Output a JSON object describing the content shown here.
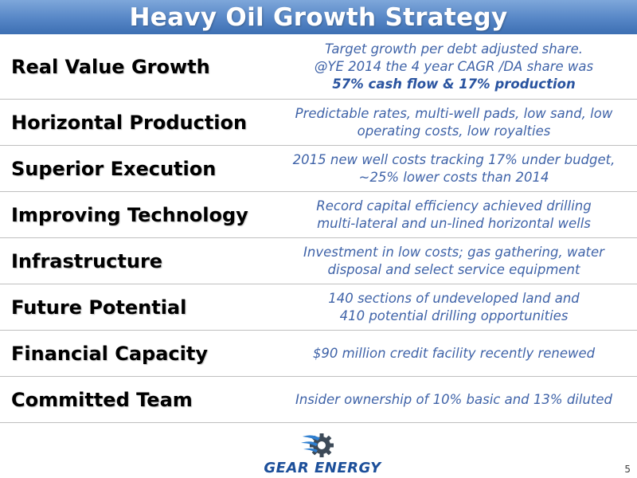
{
  "title": "Heavy Oil Growth Strategy",
  "rows": [
    {
      "label": "Real Value Growth",
      "lines": [
        "Target growth per debt adjusted share.",
        "@YE 2014 the 4 year CAGR /DA share was"
      ],
      "emphasis": "57% cash flow & 17% production"
    },
    {
      "label": "Horizontal Production",
      "lines": [
        "Predictable rates, multi-well pads, low sand, low",
        "operating costs, low royalties"
      ]
    },
    {
      "label": "Superior Execution",
      "lines": [
        "2015 new well costs tracking 17% under budget,",
        "~25% lower costs than 2014"
      ]
    },
    {
      "label": "Improving Technology",
      "lines": [
        "Record capital efficiency achieved drilling",
        "multi-lateral and un-lined horizontal wells"
      ]
    },
    {
      "label": "Infrastructure",
      "lines": [
        "Investment in low costs; gas gathering, water",
        "disposal and select service equipment"
      ]
    },
    {
      "label": "Future Potential",
      "lines": [
        "140 sections of undeveloped land and",
        "410 potential drilling opportunities"
      ]
    },
    {
      "label": "Financial Capacity",
      "lines": [
        "$90 million credit facility recently renewed"
      ]
    },
    {
      "label": "Committed Team",
      "lines": [
        "Insider ownership of 10% basic and 13% diluted"
      ]
    }
  ],
  "logo": {
    "text": "GEAR ENERGY",
    "icon": "gear-logo-icon"
  },
  "page_number": "5",
  "colors": {
    "title_bar": "#5686c6",
    "description_text": "#3f63a8",
    "logo_text": "#1c4f9a"
  }
}
